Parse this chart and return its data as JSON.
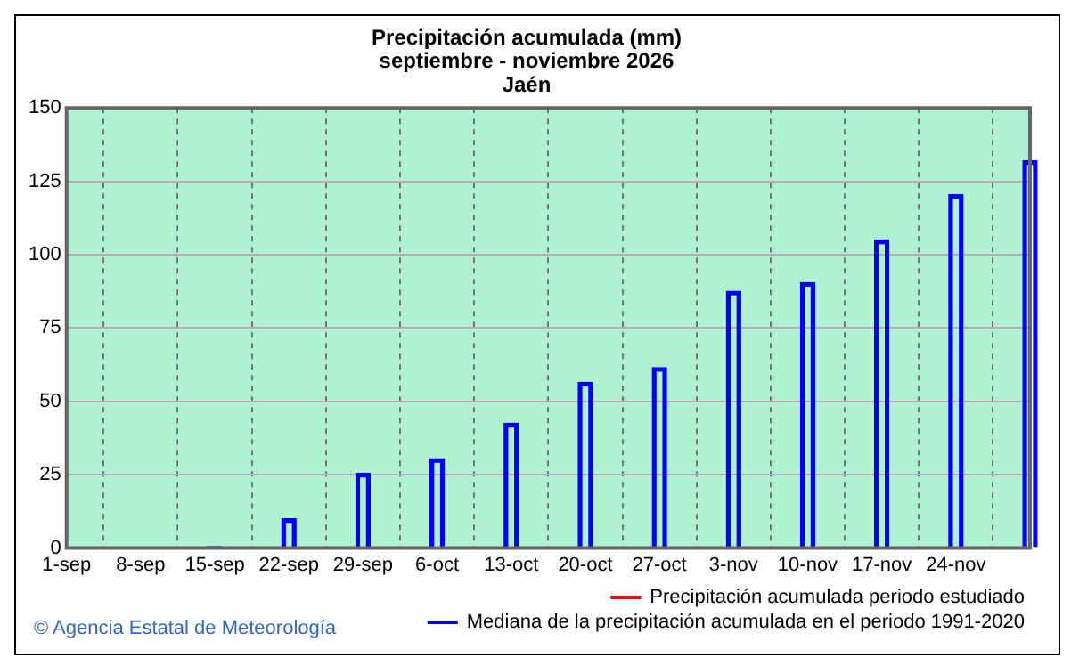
{
  "chart_data": {
    "type": "bar",
    "title": "Precipitación acumulada (mm)\nseptiembre - noviembre 2026\nJaén",
    "categories": [
      "1-sep",
      "8-sep",
      "15-sep",
      "22-sep",
      "29-sep",
      "6-oct",
      "13-oct",
      "20-oct",
      "27-oct",
      "3-nov",
      "10-nov",
      "17-nov",
      "24-nov",
      null
    ],
    "series": [
      {
        "name": "Precipitación acumulada periodo estudiado",
        "type": "line",
        "color": "#ff0000",
        "values": [
          null,
          null,
          null,
          null,
          null,
          null,
          null,
          null,
          null,
          null,
          null,
          null,
          null,
          null
        ]
      },
      {
        "name": "Mediana de la precipitación acumulada en el periodo 1991-2020",
        "color": "#0000ff",
        "values": [
          0,
          0,
          0.5,
          10,
          25.5,
          30.5,
          42.5,
          56.5,
          61.5,
          87.5,
          90.5,
          105,
          120.5,
          132
        ]
      }
    ],
    "ylim": [
      0,
      150
    ],
    "yticks": [
      0,
      25,
      50,
      75,
      100,
      125,
      150
    ],
    "grid": true,
    "legend": "bottom",
    "annotations": [
      "© Agencia Estatal de Meteorología"
    ]
  }
}
